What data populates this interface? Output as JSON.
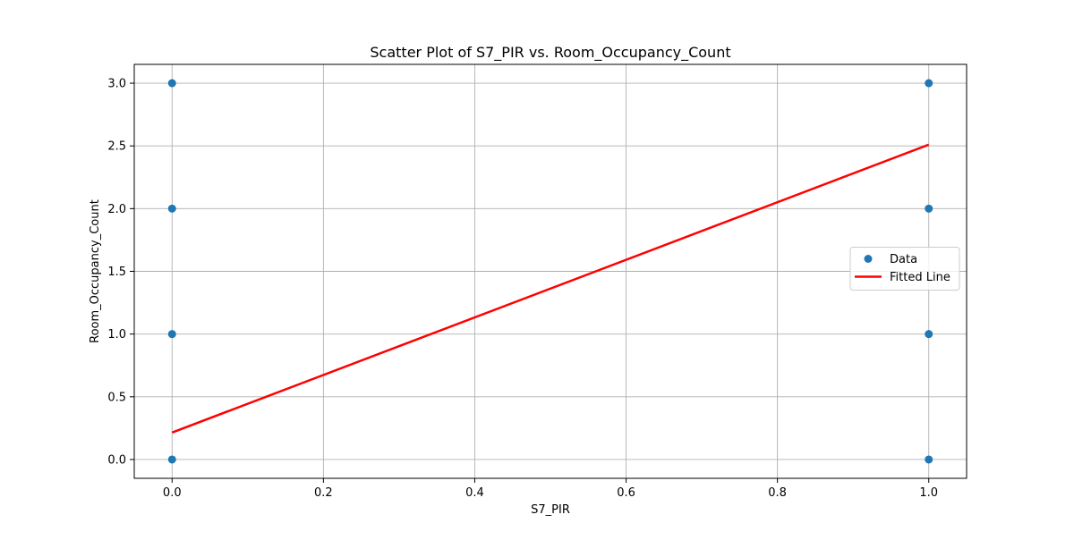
{
  "chart_data": {
    "type": "scatter",
    "title": "Scatter Plot of S7_PIR vs. Room_Occupancy_Count",
    "xlabel": "S7_PIR",
    "ylabel": "Room_Occupancy_Count",
    "xlim": [
      -0.05,
      1.05
    ],
    "ylim": [
      -0.15,
      3.15
    ],
    "x_ticks": [
      0.0,
      0.2,
      0.4,
      0.6,
      0.8,
      1.0
    ],
    "x_tick_labels": [
      "0.0",
      "0.2",
      "0.4",
      "0.6",
      "0.8",
      "1.0"
    ],
    "y_ticks": [
      0.0,
      0.5,
      1.0,
      1.5,
      2.0,
      2.5,
      3.0
    ],
    "y_tick_labels": [
      "0.0",
      "0.5",
      "1.0",
      "1.5",
      "2.0",
      "2.5",
      "3.0"
    ],
    "grid": true,
    "legend_position": "center-right",
    "series": [
      {
        "name": "Data",
        "kind": "scatter",
        "color": "#1f77b4",
        "points": [
          {
            "x": 0,
            "y": 0
          },
          {
            "x": 0,
            "y": 1
          },
          {
            "x": 0,
            "y": 2
          },
          {
            "x": 0,
            "y": 3
          },
          {
            "x": 1,
            "y": 0
          },
          {
            "x": 1,
            "y": 1
          },
          {
            "x": 1,
            "y": 2
          },
          {
            "x": 1,
            "y": 3
          }
        ]
      },
      {
        "name": "Fitted Line",
        "kind": "line",
        "color": "#ff0000",
        "points": [
          {
            "x": 0,
            "y": 0.215
          },
          {
            "x": 1,
            "y": 2.51
          }
        ]
      }
    ]
  }
}
